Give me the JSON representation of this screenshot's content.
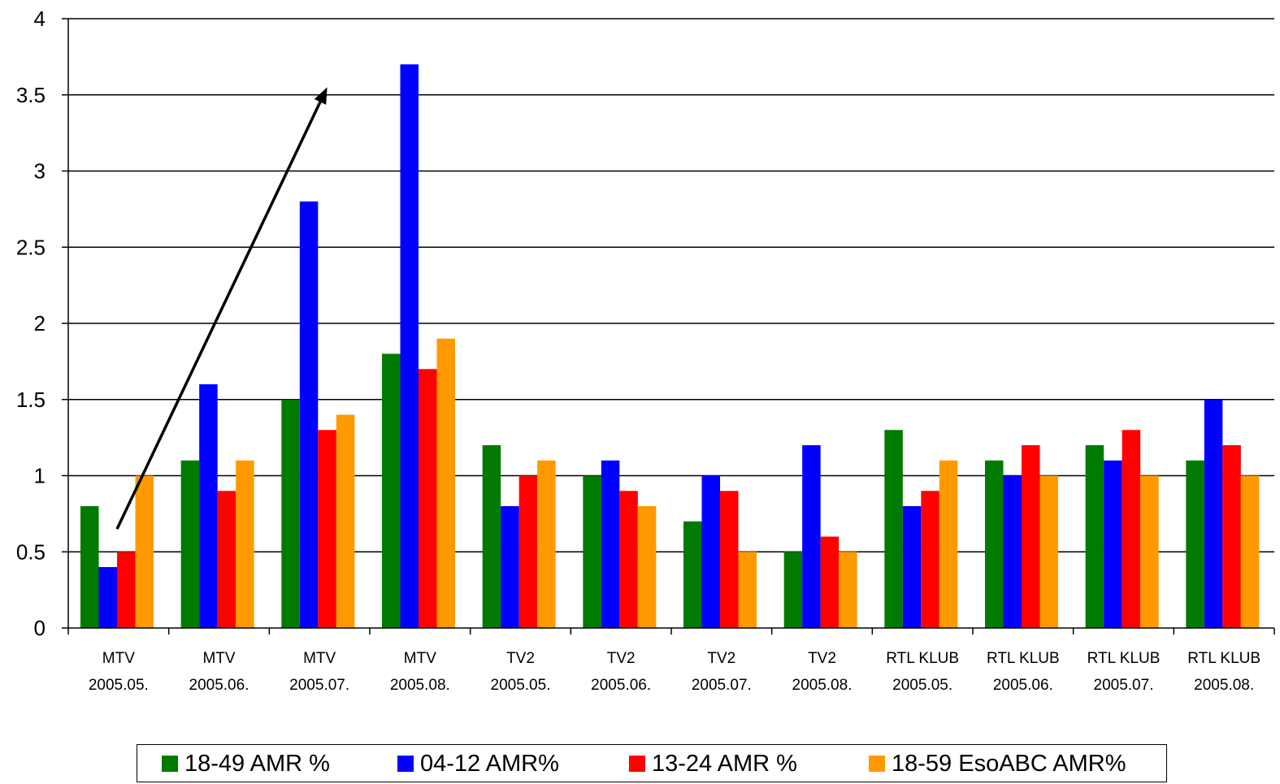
{
  "chart_data": {
    "type": "bar",
    "title": "",
    "xlabel": "",
    "ylabel": "",
    "ylim": [
      0,
      4
    ],
    "yticks": [
      "0",
      "0.5",
      "1",
      "1.5",
      "2",
      "2.5",
      "3",
      "3.5",
      "4"
    ],
    "grid": "horizontal",
    "legend_position": "bottom",
    "categories": [
      [
        "MTV",
        "2005.05."
      ],
      [
        "MTV",
        "2005.06."
      ],
      [
        "MTV",
        "2005.07."
      ],
      [
        "MTV",
        "2005.08."
      ],
      [
        "TV2",
        "2005.05."
      ],
      [
        "TV2",
        "2005.06."
      ],
      [
        "TV2",
        "2005.07."
      ],
      [
        "TV2",
        "2005.08."
      ],
      [
        "RTL KLUB",
        "2005.05."
      ],
      [
        "RTL KLUB",
        "2005.06."
      ],
      [
        "RTL KLUB",
        "2005.07."
      ],
      [
        "RTL KLUB",
        "2005.08."
      ]
    ],
    "series": [
      {
        "name": "18-49 AMR %",
        "color": "#007A00",
        "values": [
          0.8,
          1.1,
          1.5,
          1.8,
          1.2,
          1.0,
          0.7,
          0.5,
          1.3,
          1.1,
          1.2,
          1.1
        ]
      },
      {
        "name": "04-12 AMR%",
        "color": "#0000FF",
        "values": [
          0.4,
          1.6,
          2.8,
          3.7,
          0.8,
          1.1,
          1.0,
          1.2,
          0.8,
          1.0,
          1.1,
          1.5
        ]
      },
      {
        "name": "13-24 AMR %",
        "color": "#FF0000",
        "values": [
          0.5,
          0.9,
          1.3,
          1.7,
          1.0,
          0.9,
          0.9,
          0.6,
          0.9,
          1.2,
          1.3,
          1.2
        ]
      },
      {
        "name": "18-59 EsoABC AMR%",
        "color": "#FF9900",
        "values": [
          1.0,
          1.1,
          1.4,
          1.9,
          1.1,
          0.8,
          0.5,
          0.5,
          1.1,
          1.0,
          1.0,
          1.0
        ]
      }
    ],
    "annotation": {
      "type": "arrow",
      "from": {
        "category_index": 0,
        "value": 0.65
      },
      "to": {
        "category_index": 2,
        "value": 3.55
      }
    }
  }
}
